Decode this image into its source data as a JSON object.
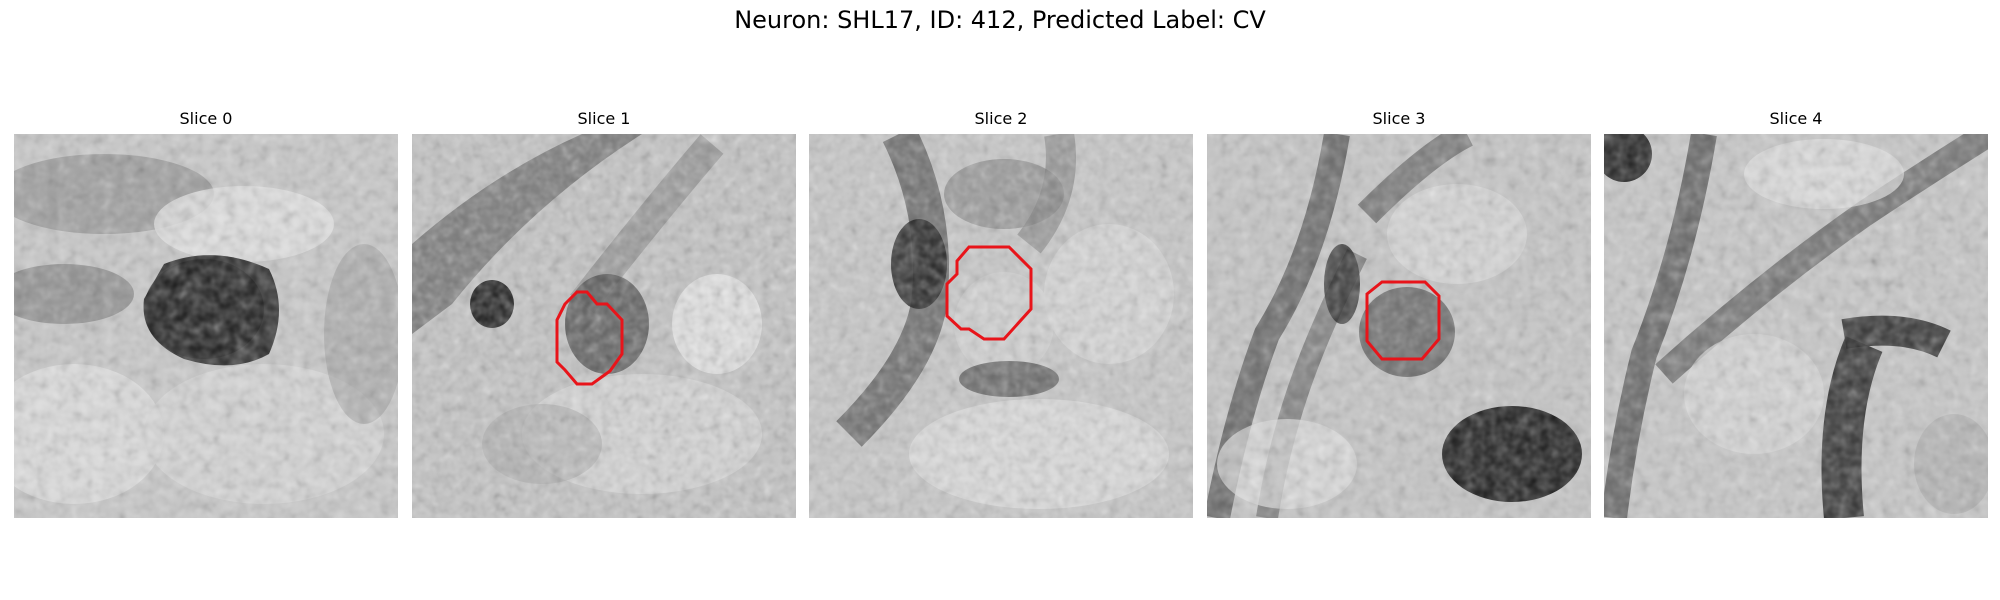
{
  "figure": {
    "title": "Neuron: SHL17, ID: 412, Predicted Label: CV"
  },
  "slices": [
    {
      "label": "Slice 0"
    },
    {
      "label": "Slice 1"
    },
    {
      "label": "Slice 2"
    },
    {
      "label": "Slice 3"
    },
    {
      "label": "Slice 4"
    }
  ],
  "colors": {
    "outline": "#e8141a",
    "background": "#ffffff"
  }
}
